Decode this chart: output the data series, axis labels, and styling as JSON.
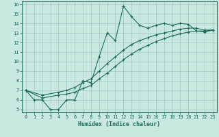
{
  "xlabel": "Humidex (Indice chaleur)",
  "bg_color": "#c8e8e0",
  "grid_color": "#a0c8c0",
  "line_color": "#1a6b5a",
  "xlim": [
    -0.5,
    23.5
  ],
  "ylim": [
    4.7,
    16.3
  ],
  "xticks": [
    0,
    1,
    2,
    3,
    4,
    5,
    6,
    7,
    8,
    9,
    10,
    11,
    12,
    13,
    14,
    15,
    16,
    17,
    18,
    19,
    20,
    21,
    22,
    23
  ],
  "yticks": [
    5,
    6,
    7,
    8,
    9,
    10,
    11,
    12,
    13,
    14,
    15,
    16
  ],
  "line1_x": [
    0,
    1,
    2,
    3,
    4,
    5,
    6,
    7,
    8,
    9,
    10,
    11,
    12,
    13,
    14,
    15,
    16,
    17,
    18,
    19,
    20,
    21,
    22,
    23
  ],
  "line1_y": [
    7,
    6,
    6,
    5,
    5,
    6,
    6,
    8,
    7.8,
    10.5,
    13,
    12.2,
    15.8,
    14.7,
    13.8,
    13.5,
    13.8,
    14,
    13.8,
    14,
    13.9,
    13.2,
    13.1,
    13.3
  ],
  "line2_x": [
    0,
    2,
    4,
    5,
    6,
    7,
    8,
    9,
    10,
    11,
    12,
    13,
    14,
    15,
    16,
    17,
    18,
    19,
    20,
    21,
    22,
    23
  ],
  "line2_y": [
    7,
    6.5,
    6.8,
    7.0,
    7.3,
    7.8,
    8.2,
    9.0,
    9.8,
    10.5,
    11.2,
    11.8,
    12.2,
    12.5,
    12.8,
    13.0,
    13.2,
    13.4,
    13.5,
    13.5,
    13.3,
    13.3
  ],
  "line3_x": [
    0,
    2,
    4,
    5,
    6,
    7,
    8,
    9,
    10,
    11,
    12,
    13,
    14,
    15,
    16,
    17,
    18,
    19,
    20,
    21,
    22,
    23
  ],
  "line3_y": [
    7,
    6.2,
    6.5,
    6.6,
    6.8,
    7.2,
    7.5,
    8.2,
    8.8,
    9.5,
    10.2,
    10.8,
    11.3,
    11.7,
    12.1,
    12.4,
    12.7,
    12.9,
    13.1,
    13.2,
    13.2,
    13.3
  ],
  "marker": "+",
  "xlabel_fontsize": 6,
  "tick_fontsize": 5
}
